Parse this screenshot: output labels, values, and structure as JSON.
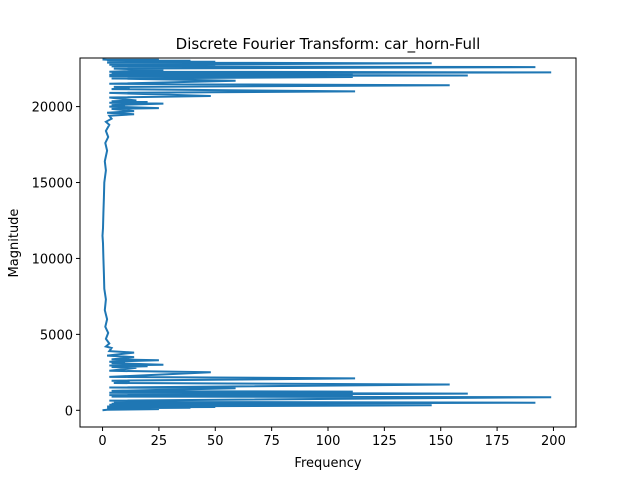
{
  "chart_data": {
    "type": "line",
    "title": "Discrete Fourier Transform: car_horn-Full",
    "xlabel": "Frequency",
    "ylabel": "Magnitude",
    "xlim": [
      -10,
      210
    ],
    "ylim": [
      -1100,
      23200
    ],
    "xticks": [
      0,
      25,
      50,
      75,
      100,
      125,
      150,
      175,
      200
    ],
    "yticks": [
      0,
      5000,
      10000,
      15000,
      20000
    ],
    "grid": false,
    "legend": "none",
    "colors": {
      "series": "#1f77b4"
    },
    "series": [
      {
        "name": "",
        "points": [
          [
            0,
            0
          ],
          [
            2,
            30
          ],
          [
            25,
            80
          ],
          [
            23,
            110
          ],
          [
            2,
            140
          ],
          [
            39,
            170
          ],
          [
            3,
            190
          ],
          [
            50,
            220
          ],
          [
            2,
            250
          ],
          [
            146,
            330
          ],
          [
            3,
            360
          ],
          [
            50,
            400
          ],
          [
            4,
            430
          ],
          [
            192,
            500
          ],
          [
            5,
            560
          ],
          [
            27,
            600
          ],
          [
            3,
            640
          ],
          [
            199,
            860
          ],
          [
            4,
            900
          ],
          [
            111,
            950
          ],
          [
            3,
            1000
          ],
          [
            162,
            1100
          ],
          [
            3,
            1150
          ],
          [
            111,
            1230
          ],
          [
            4,
            1280
          ],
          [
            59,
            1450
          ],
          [
            3,
            1500
          ],
          [
            154,
            1700
          ],
          [
            5,
            1800
          ],
          [
            12,
            1900
          ],
          [
            4,
            1950
          ],
          [
            112,
            2100
          ],
          [
            3,
            2200
          ],
          [
            48,
            2500
          ],
          [
            3,
            2600
          ],
          [
            15,
            2800
          ],
          [
            4,
            2850
          ],
          [
            20,
            2900
          ],
          [
            3,
            2950
          ],
          [
            27,
            3000
          ],
          [
            4,
            3100
          ],
          [
            10,
            3150
          ],
          [
            3,
            3200
          ],
          [
            25,
            3300
          ],
          [
            4,
            3350
          ],
          [
            14,
            3500
          ],
          [
            2,
            3600
          ],
          [
            14,
            3800
          ],
          [
            3,
            3900
          ],
          [
            4,
            4100
          ],
          [
            1.5,
            4200
          ],
          [
            3,
            4400
          ],
          [
            1.5,
            4700
          ],
          [
            2.5,
            5100
          ],
          [
            1.2,
            5500
          ],
          [
            2,
            6000
          ],
          [
            1,
            6600
          ],
          [
            1.5,
            7300
          ],
          [
            0.8,
            8000
          ],
          [
            0.6,
            9000
          ],
          [
            0.4,
            10000
          ],
          [
            0.2,
            11000
          ],
          [
            0,
            11500
          ],
          [
            0.2,
            12000
          ],
          [
            0.4,
            13000
          ],
          [
            0.6,
            14000
          ],
          [
            0.8,
            15000
          ],
          [
            1.5,
            15800
          ],
          [
            1,
            16400
          ],
          [
            2,
            17100
          ],
          [
            1.2,
            17600
          ],
          [
            2.5,
            18000
          ],
          [
            1.5,
            18400
          ],
          [
            3,
            18800
          ],
          [
            1.5,
            19000
          ],
          [
            4,
            19200
          ],
          [
            3,
            19400
          ],
          [
            14,
            19500
          ],
          [
            2,
            19600
          ],
          [
            14,
            19700
          ],
          [
            4,
            19850
          ],
          [
            25,
            19900
          ],
          [
            3,
            20000
          ],
          [
            10,
            20050
          ],
          [
            4,
            20100
          ],
          [
            27,
            20200
          ],
          [
            3,
            20250
          ],
          [
            20,
            20300
          ],
          [
            4,
            20350
          ],
          [
            15,
            20400
          ],
          [
            3,
            20600
          ],
          [
            48,
            20700
          ],
          [
            3,
            20900
          ],
          [
            112,
            21000
          ],
          [
            4,
            21150
          ],
          [
            12,
            21250
          ],
          [
            5,
            21300
          ],
          [
            154,
            21400
          ],
          [
            3,
            21500
          ],
          [
            59,
            21700
          ],
          [
            4,
            21850
          ],
          [
            111,
            21950
          ],
          [
            3,
            22000
          ],
          [
            162,
            22050
          ],
          [
            3,
            22100
          ],
          [
            111,
            22150
          ],
          [
            4,
            22200
          ],
          [
            199,
            22250
          ],
          [
            3,
            22300
          ],
          [
            27,
            22400
          ],
          [
            5,
            22500
          ],
          [
            192,
            22600
          ],
          [
            4,
            22650
          ],
          [
            50,
            22700
          ],
          [
            3,
            22750
          ],
          [
            146,
            22850
          ],
          [
            2,
            22900
          ],
          [
            50,
            22950
          ],
          [
            3,
            23000
          ],
          [
            39,
            23020
          ],
          [
            2,
            23040
          ],
          [
            23,
            23060
          ],
          [
            25,
            23080
          ],
          [
            2,
            23090
          ],
          [
            0,
            23100
          ]
        ]
      }
    ]
  }
}
